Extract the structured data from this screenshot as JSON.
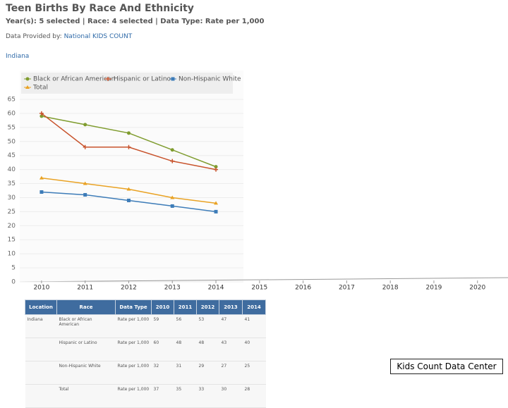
{
  "header": {
    "title": "Teen Births By Race And Ethnicity",
    "subtitle": "Year(s): 5 selected | Race: 4 selected | Data Type: Rate per 1,000",
    "provider_label": "Data Provided by:",
    "provider": "National KIDS COUNT",
    "location": "Indiana"
  },
  "chart_data": {
    "type": "line",
    "x": [
      2010,
      2011,
      2012,
      2013,
      2014
    ],
    "xlim": [
      2009.5,
      2020.7
    ],
    "xticks": [
      2010,
      2011,
      2012,
      2013,
      2014,
      2015,
      2016,
      2017,
      2018,
      2019,
      2020
    ],
    "ylim": [
      0,
      65
    ],
    "yticks": [
      0,
      5,
      10,
      15,
      20,
      25,
      30,
      35,
      40,
      45,
      50,
      55,
      60,
      65
    ],
    "grid": true,
    "series": [
      {
        "name": "Black or African American",
        "color": "#7f9c2e",
        "marker": "circle",
        "values": [
          59,
          56,
          53,
          47,
          41
        ]
      },
      {
        "name": "Hispanic or Latino",
        "color": "#c8532c",
        "marker": "plus",
        "values": [
          60,
          48,
          48,
          43,
          40
        ]
      },
      {
        "name": "Non-Hispanic White",
        "color": "#3d7cb8",
        "marker": "square",
        "values": [
          32,
          31,
          29,
          27,
          25
        ]
      },
      {
        "name": "Total",
        "color": "#e9a223",
        "marker": "triangle",
        "values": [
          37,
          35,
          33,
          30,
          28
        ]
      }
    ]
  },
  "table": {
    "columns": [
      "Location",
      "Race",
      "Data Type",
      "2010",
      "2011",
      "2012",
      "2013",
      "2014"
    ],
    "rows": [
      [
        "Indiana",
        "Black or African American",
        "Rate per 1,000",
        "59",
        "56",
        "53",
        "47",
        "41"
      ],
      [
        "",
        "Hispanic or Latino",
        "Rate per 1,000",
        "60",
        "48",
        "48",
        "43",
        "40"
      ],
      [
        "",
        "Non-Hispanic White",
        "Rate per 1,000",
        "32",
        "31",
        "29",
        "27",
        "25"
      ],
      [
        "",
        "Total",
        "Rate per 1,000",
        "37",
        "35",
        "33",
        "30",
        "28"
      ]
    ]
  },
  "footer": "Kids Count Data Center"
}
